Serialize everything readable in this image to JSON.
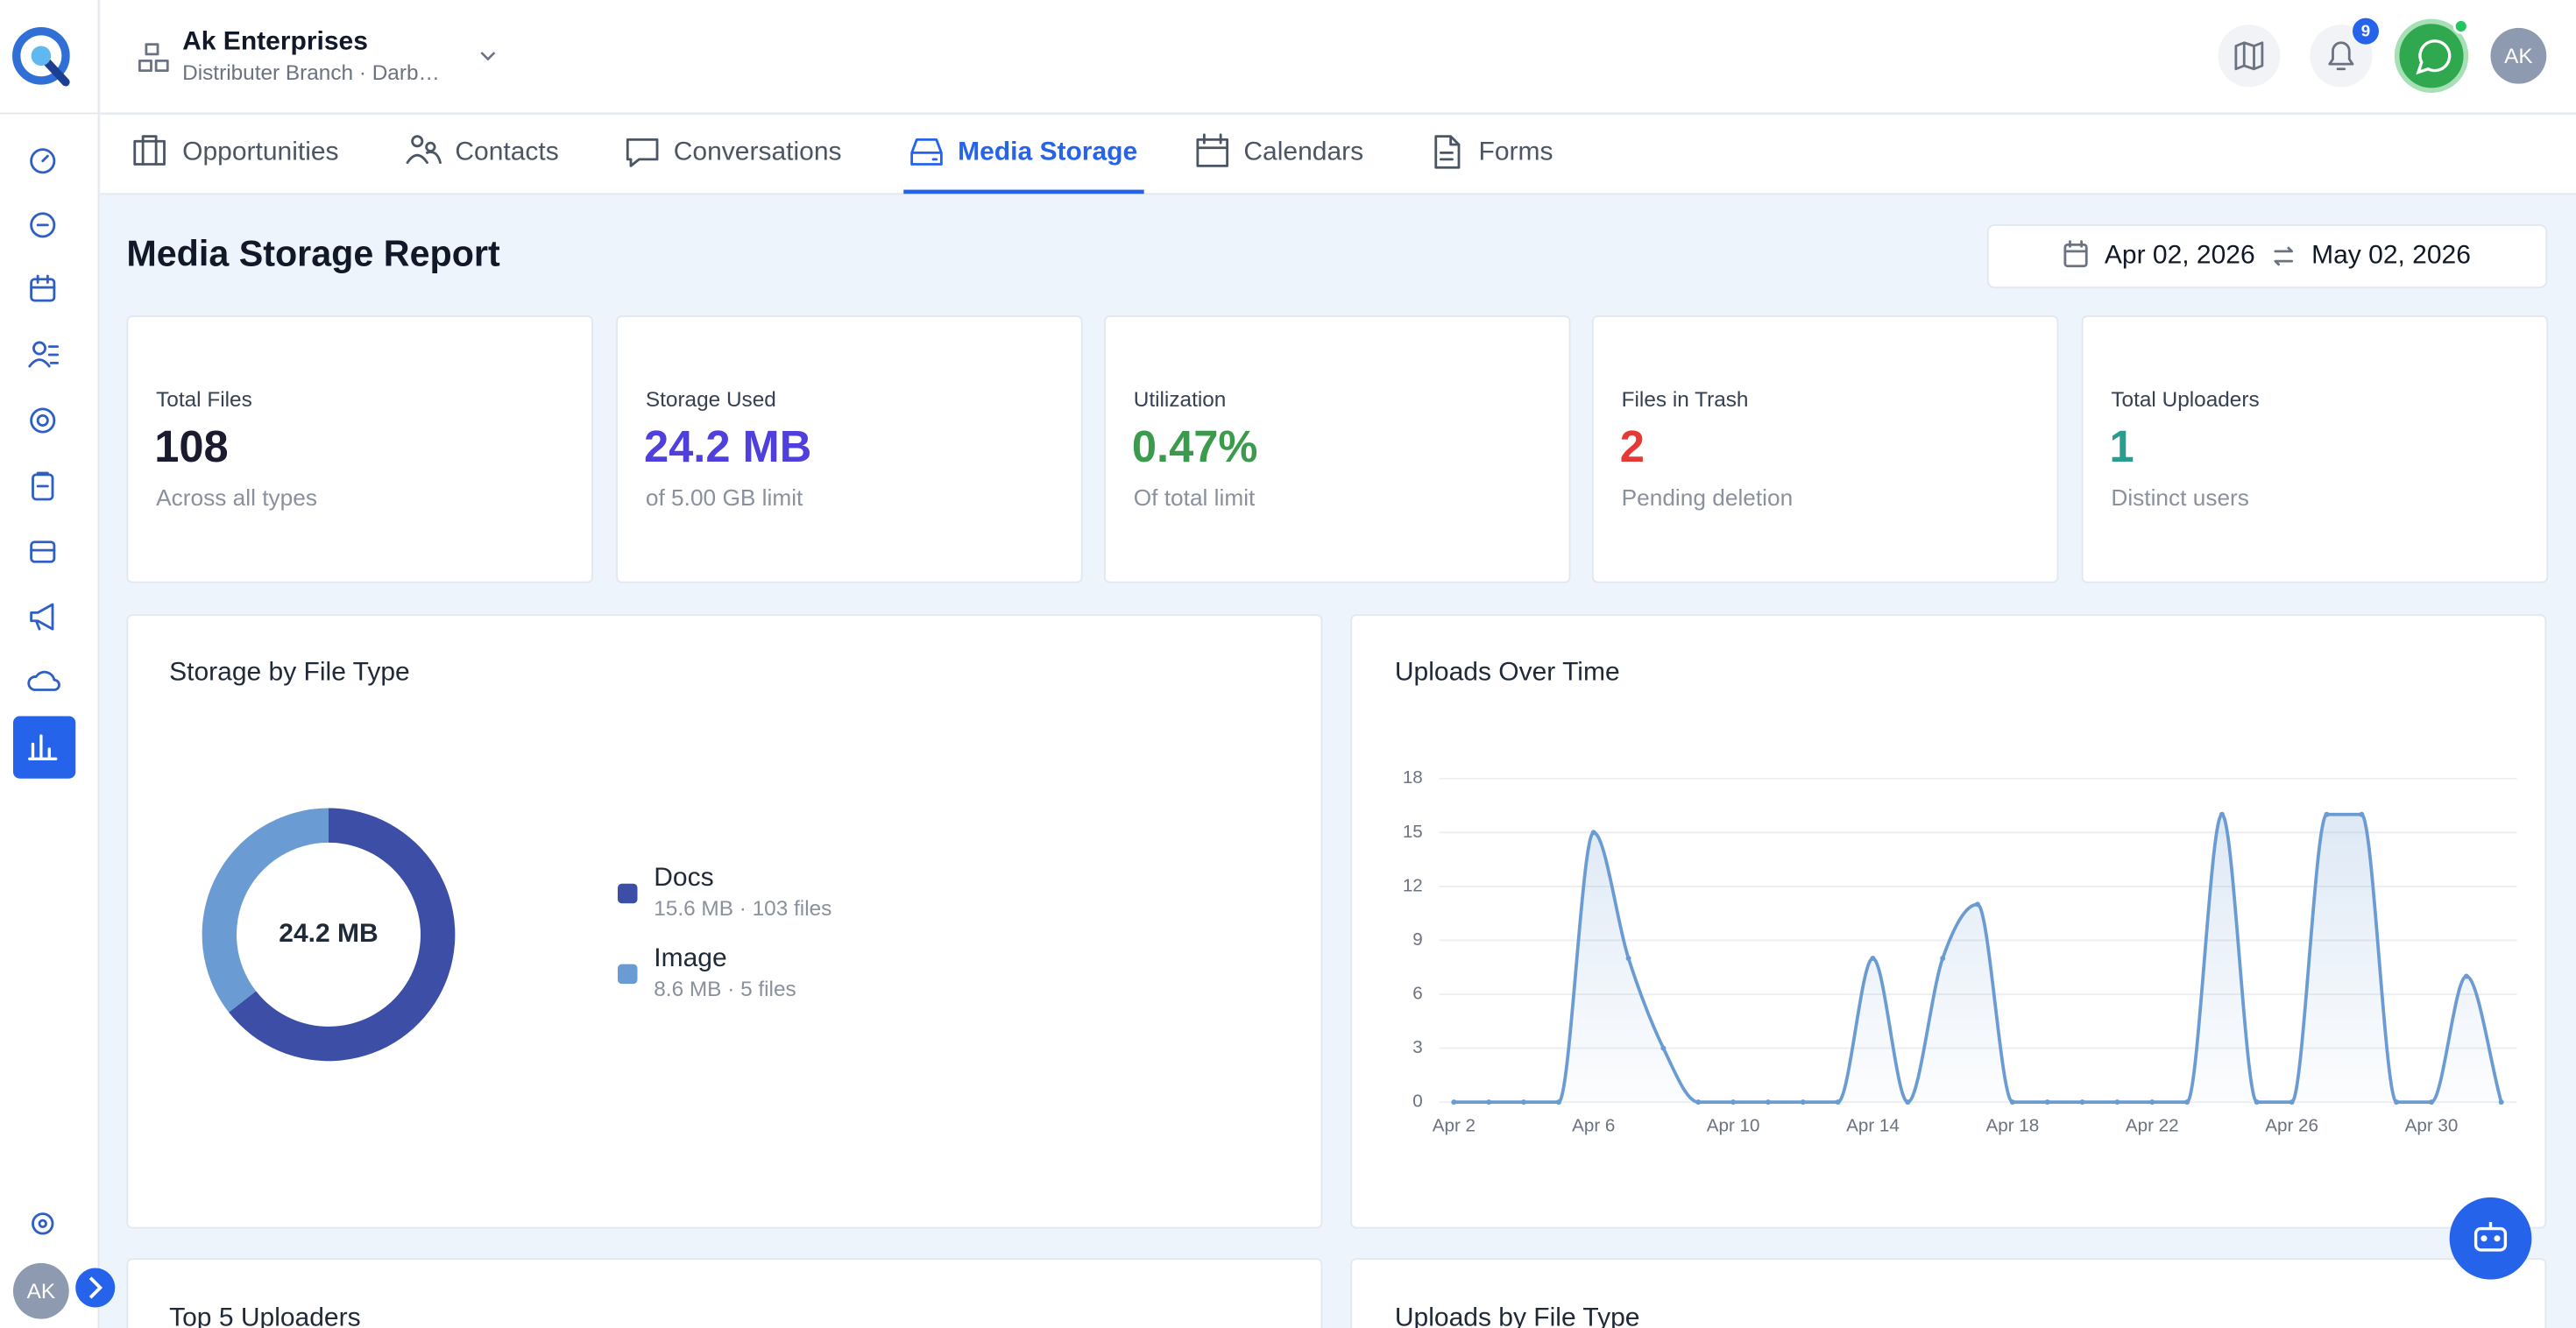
{
  "header": {
    "company": "Ak Enterprises",
    "branch": "Distributer Branch · Darb…",
    "notifications": "9",
    "avatar": "AK"
  },
  "sidebar": {
    "avatar": "AK"
  },
  "tabs": [
    "Opportunities",
    "Contacts",
    "Conversations",
    "Media Storage",
    "Calendars",
    "Forms"
  ],
  "active_tab": 3,
  "report": {
    "title": "Media Storage Report",
    "date_from": "Apr 02, 2026",
    "date_to": "May 02, 2026"
  },
  "kpis": [
    {
      "label": "Total Files",
      "value": "108",
      "note": "Across all types",
      "color": "#1b1b2f"
    },
    {
      "label": "Storage Used",
      "value": "24.2 MB",
      "note": "of 5.00 GB limit",
      "color": "#4f3fdc"
    },
    {
      "label": "Utilization",
      "value": "0.47%",
      "note": "Of total limit",
      "color": "#3b9a4b"
    },
    {
      "label": "Files in Trash",
      "value": "2",
      "note": "Pending deletion",
      "color": "#e53935"
    },
    {
      "label": "Total Uploaders",
      "value": "1",
      "note": "Distinct users",
      "color": "#2a9d8f"
    }
  ],
  "chart_data": [
    {
      "type": "donut",
      "title": "Storage by File Type",
      "center_label": "24.2 MB",
      "categories": [
        "Docs",
        "Image"
      ],
      "values": [
        15.6,
        8.6
      ],
      "value_labels": [
        "15.6 MB · 103 files",
        "8.6 MB · 5 files"
      ],
      "colors": [
        "#3c4ea6",
        "#6a9bd2"
      ]
    },
    {
      "type": "line",
      "title": "Uploads Over Time",
      "categories": [
        "Apr 2",
        null,
        null,
        null,
        "Apr 6",
        null,
        null,
        null,
        "Apr 10",
        null,
        null,
        null,
        "Apr 14",
        null,
        null,
        null,
        "Apr 18",
        null,
        null,
        null,
        "Apr 22",
        null,
        null,
        null,
        "Apr 26",
        null,
        null,
        null,
        "Apr 30",
        null,
        null
      ],
      "values": [
        0,
        0,
        0,
        0,
        15,
        8,
        3,
        0,
        0,
        0,
        0,
        0,
        8,
        0,
        8,
        11,
        0,
        0,
        0,
        0,
        0,
        0,
        16,
        0,
        0,
        16,
        16,
        0,
        0,
        7,
        0
      ],
      "color": "#6a9bd2",
      "ylim": [
        0,
        18
      ],
      "yticks": [
        0,
        3,
        6,
        9,
        12,
        15,
        18
      ],
      "grid": true
    }
  ],
  "sections": [
    "Top 5 Uploaders",
    "Uploads by File Type"
  ]
}
